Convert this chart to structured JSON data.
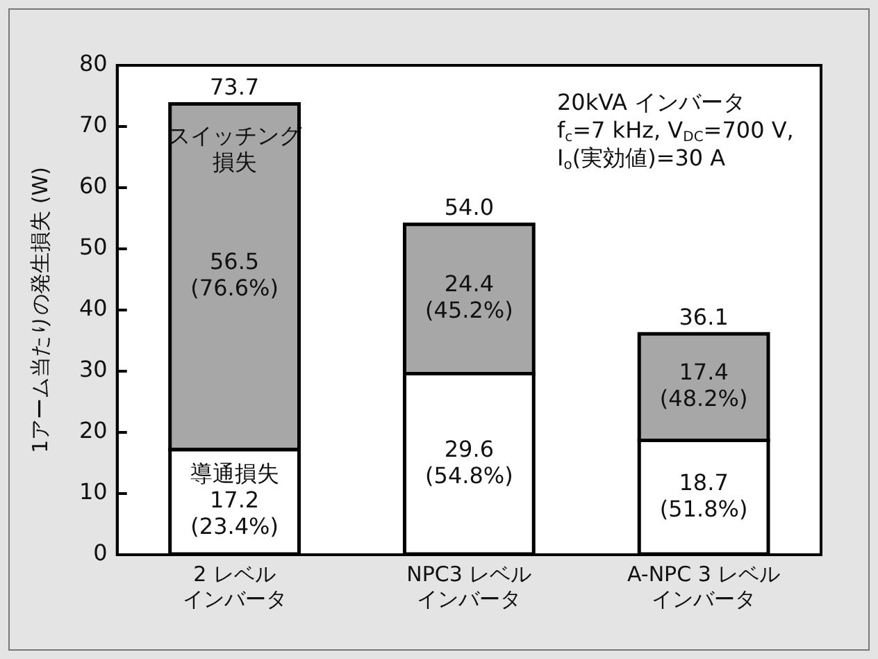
{
  "chart_data": {
    "type": "bar",
    "stacked": true,
    "categories": [
      "2 レベルインバータ",
      "NPC3 レベルインバータ",
      "A-NPC 3 レベルインバータ"
    ],
    "ylabel": "1アーム当たりの発生損失 (W)",
    "ylim": [
      0,
      80
    ],
    "yticks": [
      0,
      10,
      20,
      30,
      40,
      50,
      60,
      70,
      80
    ],
    "grid": false,
    "legend": false,
    "series": [
      {
        "name": "導通損失",
        "color": "#ffffff",
        "values": [
          17.2,
          29.6,
          18.7
        ],
        "value_labels": [
          "17.2\n(23.4%)",
          "29.6\n(54.8%)",
          "18.7\n(51.8%)"
        ]
      },
      {
        "name": "スイッチング損失",
        "color": "#a7a7a7",
        "values": [
          56.5,
          24.4,
          17.4
        ],
        "value_labels": [
          "56.5\n(76.6%)",
          "24.4\n(45.2%)",
          "17.4\n(48.2%)"
        ]
      }
    ],
    "totals": [
      "73.7",
      "54.0",
      "36.1"
    ],
    "annotations": [
      "20kVA インバータ",
      "f$_{c}$=7 kHz, V$_{DC}$=700 V,",
      "I$_{o}$(実効値)=30 A"
    ]
  }
}
